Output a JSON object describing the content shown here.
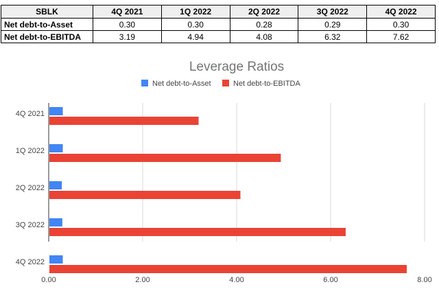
{
  "table": {
    "corner": "SBLK",
    "columns": [
      "4Q 2021",
      "1Q 2022",
      "2Q 2022",
      "3Q 2022",
      "4Q 2022"
    ],
    "rows": [
      {
        "label": "Net debt-to-Asset",
        "values": [
          "0.30",
          "0.30",
          "0.28",
          "0.29",
          "0.30"
        ]
      },
      {
        "label": "Net debt-to-EBITDA",
        "values": [
          "3.19",
          "4.94",
          "4.08",
          "6.32",
          "7.62"
        ]
      }
    ]
  },
  "chart_data": {
    "type": "bar",
    "orientation": "horizontal",
    "title": "Leverage Ratios",
    "categories": [
      "4Q 2021",
      "1Q 2022",
      "2Q 2022",
      "3Q 2022",
      "4Q 2022"
    ],
    "series": [
      {
        "name": "Net debt-to-Asset",
        "color": "#4285f4",
        "values": [
          0.3,
          0.3,
          0.28,
          0.29,
          0.3
        ]
      },
      {
        "name": "Net debt-to-EBITDA",
        "color": "#ea4335",
        "values": [
          3.19,
          4.94,
          4.08,
          6.32,
          7.62
        ]
      }
    ],
    "xlim": [
      0,
      8
    ],
    "xticks": [
      "0.00",
      "2.00",
      "4.00",
      "6.00",
      "8.00"
    ],
    "xtick_values": [
      0,
      2,
      4,
      6,
      8
    ],
    "xlabel": "",
    "ylabel": "",
    "grid": true,
    "legend": "top"
  }
}
